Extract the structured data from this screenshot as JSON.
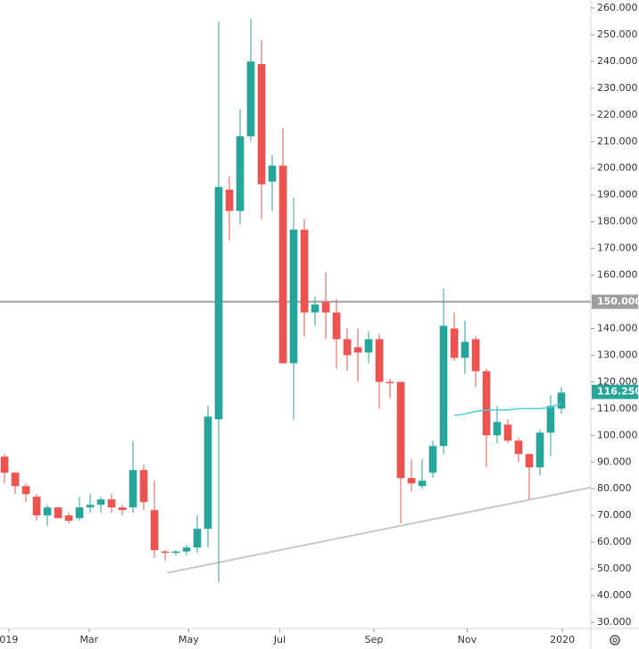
{
  "chart_data": {
    "type": "candlestick",
    "x": [
      0,
      1,
      2,
      3,
      4,
      5,
      6,
      7,
      8,
      9,
      10,
      11,
      12,
      13,
      14,
      15,
      16,
      17,
      18,
      19,
      20,
      21,
      22,
      23,
      24,
      25,
      26,
      27,
      28,
      29,
      30,
      31,
      32,
      33,
      34,
      35,
      36,
      37,
      38,
      39,
      40,
      41,
      42,
      43,
      44,
      45,
      46,
      47,
      48,
      49,
      50,
      51,
      52
    ],
    "open": [
      92,
      86,
      81,
      77,
      70,
      73,
      70,
      69,
      73,
      74,
      76,
      73,
      73,
      87,
      72,
      56.5,
      56,
      56.5,
      58,
      65,
      106,
      192,
      184,
      212,
      239,
      195,
      201,
      127,
      177,
      146,
      150,
      146,
      136,
      133,
      131,
      136,
      120,
      120,
      84,
      81,
      86,
      96,
      140,
      129,
      136,
      124,
      100,
      104,
      98,
      93,
      88,
      101,
      110
    ],
    "high": [
      93,
      85,
      82,
      78,
      74,
      73,
      71,
      77,
      78,
      77,
      78,
      74,
      98,
      89,
      83,
      57,
      57,
      59,
      70,
      111,
      255,
      197,
      222,
      256,
      248,
      205,
      215,
      189,
      181,
      152,
      161,
      151,
      140,
      140,
      139,
      138,
      121,
      120,
      91,
      91,
      98,
      155,
      146,
      143,
      137,
      125,
      111,
      106,
      99,
      93,
      102,
      115,
      118
    ],
    "low": [
      82,
      78,
      75,
      68,
      66,
      69,
      67,
      68,
      71,
      71,
      71,
      70,
      71,
      72,
      54,
      53,
      55,
      55,
      56,
      58,
      45,
      173,
      179,
      210,
      181,
      184,
      127,
      106,
      137,
      141,
      136,
      125,
      124,
      120,
      127,
      110,
      114,
      67,
      79,
      80,
      84,
      93,
      128,
      123,
      118,
      88,
      97,
      97,
      90,
      76,
      85,
      92,
      108
    ],
    "close": [
      86,
      81,
      78,
      70,
      73,
      69,
      68,
      73,
      74,
      76,
      73,
      72,
      87,
      75,
      57,
      56,
      56.5,
      58,
      65,
      107,
      193,
      184,
      212,
      240,
      194,
      201,
      127,
      177,
      146,
      149,
      146,
      136,
      130,
      131,
      136,
      120,
      119.5,
      84,
      82,
      83,
      96,
      141,
      129,
      135,
      124,
      100,
      105,
      98,
      93,
      88,
      101,
      111,
      116
    ],
    "up_color": "#26a69a",
    "down_color": "#ef5350",
    "moving_average": {
      "color": "#4dd0e1",
      "values": [
        null,
        null,
        null,
        null,
        null,
        null,
        null,
        null,
        null,
        null,
        null,
        null,
        null,
        null,
        null,
        null,
        null,
        null,
        null,
        null,
        null,
        null,
        null,
        null,
        null,
        null,
        null,
        null,
        null,
        null,
        null,
        null,
        null,
        null,
        null,
        null,
        null,
        null,
        null,
        null,
        null,
        null,
        107.5,
        108,
        109,
        109.5,
        109.5,
        109.5,
        110,
        110,
        110,
        110.5,
        112
      ]
    },
    "hline": {
      "value": 150,
      "label": "150.000",
      "color": "#9e9e9e"
    },
    "last_price": {
      "value": 116.25,
      "label": "116.250"
    },
    "trendline": {
      "color": "#c8c8c8",
      "x": [
        15.2,
        54.75
      ],
      "y": [
        48.5,
        80.5
      ]
    },
    "xlim": [
      -0.42,
      54.75
    ],
    "xticks": [
      {
        "value": 0.4,
        "label": "019"
      },
      {
        "value": 7.9,
        "label": "Mar"
      },
      {
        "value": 17.2,
        "label": "May"
      },
      {
        "value": 25.7,
        "label": "Jul"
      },
      {
        "value": 34.5,
        "label": "Sep"
      },
      {
        "value": 43.2,
        "label": "Nov"
      },
      {
        "value": 52.1,
        "label": "2020"
      }
    ],
    "ylim": [
      30,
      260
    ],
    "yticks": [
      {
        "value": 30,
        "label": "30.000"
      },
      {
        "value": 40,
        "label": "40.000"
      },
      {
        "value": 50,
        "label": "50.000"
      },
      {
        "value": 60,
        "label": "60.000"
      },
      {
        "value": 70,
        "label": "70.000"
      },
      {
        "value": 80,
        "label": "80.000"
      },
      {
        "value": 90,
        "label": "90.000"
      },
      {
        "value": 100,
        "label": "100.000"
      },
      {
        "value": 110,
        "label": "110.000"
      },
      {
        "value": 120,
        "label": "120.000"
      },
      {
        "value": 130,
        "label": "130.000"
      },
      {
        "value": 140,
        "label": "140.000"
      },
      {
        "value": 160,
        "label": "160.000"
      },
      {
        "value": 170,
        "label": "170.000"
      },
      {
        "value": 180,
        "label": "180.000"
      },
      {
        "value": 190,
        "label": "190.000"
      },
      {
        "value": 200,
        "label": "200.000"
      },
      {
        "value": 210,
        "label": "210.000"
      },
      {
        "value": 220,
        "label": "220.000"
      },
      {
        "value": 230,
        "label": "230.000"
      },
      {
        "value": 240,
        "label": "240.000"
      },
      {
        "value": 250,
        "label": "250.000"
      },
      {
        "value": 260,
        "label": "260.000"
      }
    ]
  }
}
